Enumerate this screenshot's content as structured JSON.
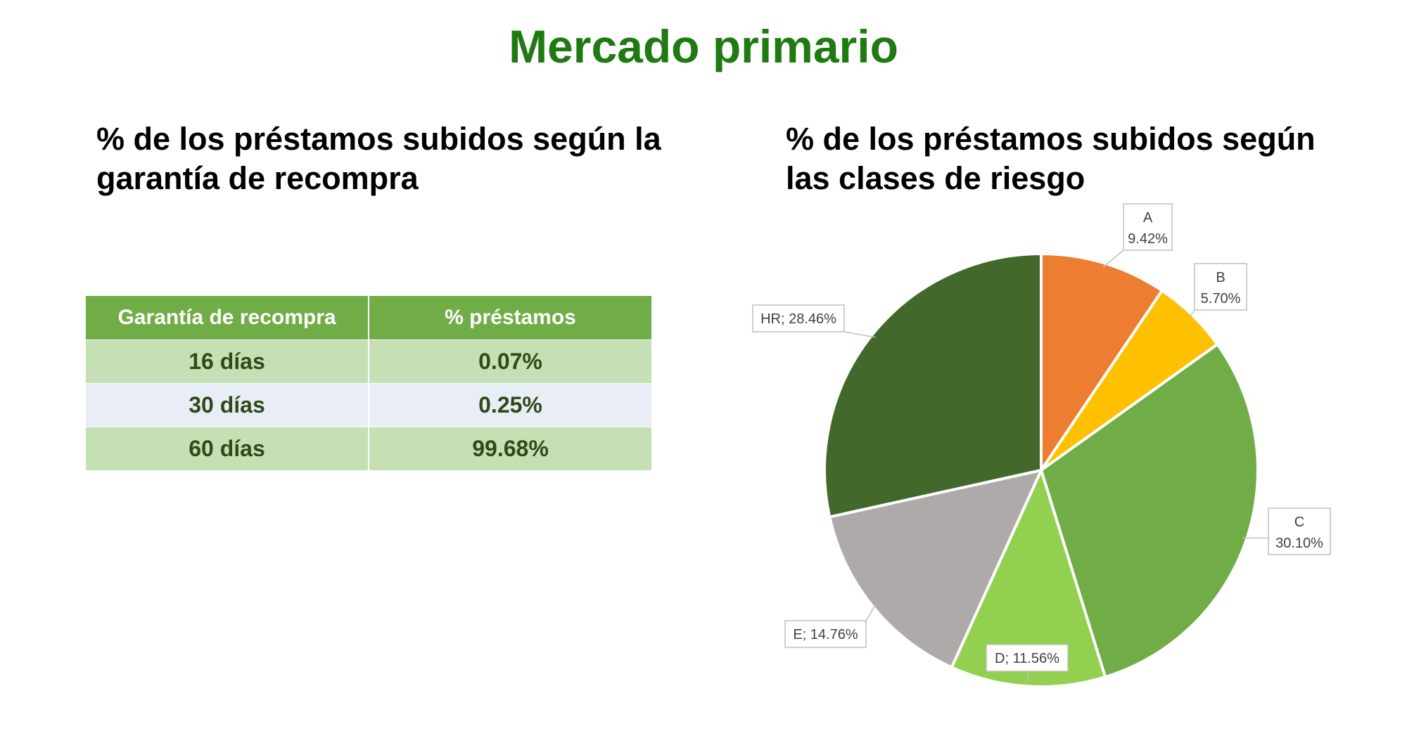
{
  "title": "Mercado primario",
  "left": {
    "subtitle": "% de los préstamos subidos según la garantía de recompra",
    "table": {
      "headers": [
        "Garantía de recompra",
        "% préstamos"
      ],
      "rows": [
        [
          "16 días",
          "0.07%"
        ],
        [
          "30 días",
          "0.25%"
        ],
        [
          "60 días",
          "99.68%"
        ]
      ]
    }
  },
  "right": {
    "subtitle": "% de los préstamos subidos según las clases de riesgo"
  },
  "chart_data": {
    "type": "pie",
    "slices": [
      {
        "label": "A",
        "value": 9.42,
        "display": "9.42%",
        "color": "#ed7d31",
        "label_style": "stacked"
      },
      {
        "label": "B",
        "value": 5.7,
        "display": "5.70%",
        "color": "#ffc000",
        "label_style": "stacked"
      },
      {
        "label": "C",
        "value": 30.1,
        "display": "30.10%",
        "color": "#70ad47",
        "label_style": "stacked"
      },
      {
        "label": "D",
        "value": 11.56,
        "display": "D; 11.56%",
        "color": "#92d050",
        "label_style": "inline"
      },
      {
        "label": "E",
        "value": 14.76,
        "display": "E; 14.76%",
        "color": "#aeaaaa",
        "label_style": "inline"
      },
      {
        "label": "HR",
        "value": 28.46,
        "display": "HR; 28.46%",
        "color": "#43682b",
        "label_style": "inline"
      }
    ],
    "start_angle": "12 o'clock",
    "direction": "clockwise",
    "legend": "none"
  }
}
